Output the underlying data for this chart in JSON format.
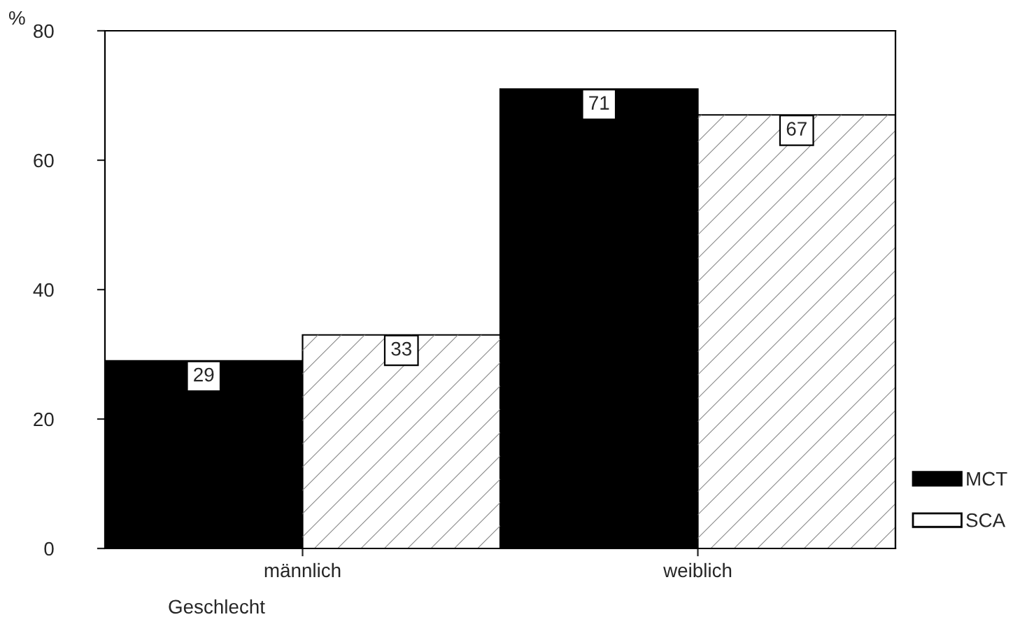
{
  "chart_data": {
    "type": "bar",
    "ylabel": "%",
    "xlabel": "Geschlecht",
    "categories": [
      "männlich",
      "weiblich"
    ],
    "series": [
      {
        "name": "MCT",
        "color": "#000000",
        "values": [
          29,
          71
        ]
      },
      {
        "name": "SCA",
        "color": "#ffffff",
        "values": [
          33,
          67
        ]
      }
    ],
    "ylim": [
      0,
      80
    ],
    "yticks": [
      0,
      20,
      40,
      60,
      80
    ],
    "grid": false,
    "legend": "right",
    "data_labels": true
  }
}
